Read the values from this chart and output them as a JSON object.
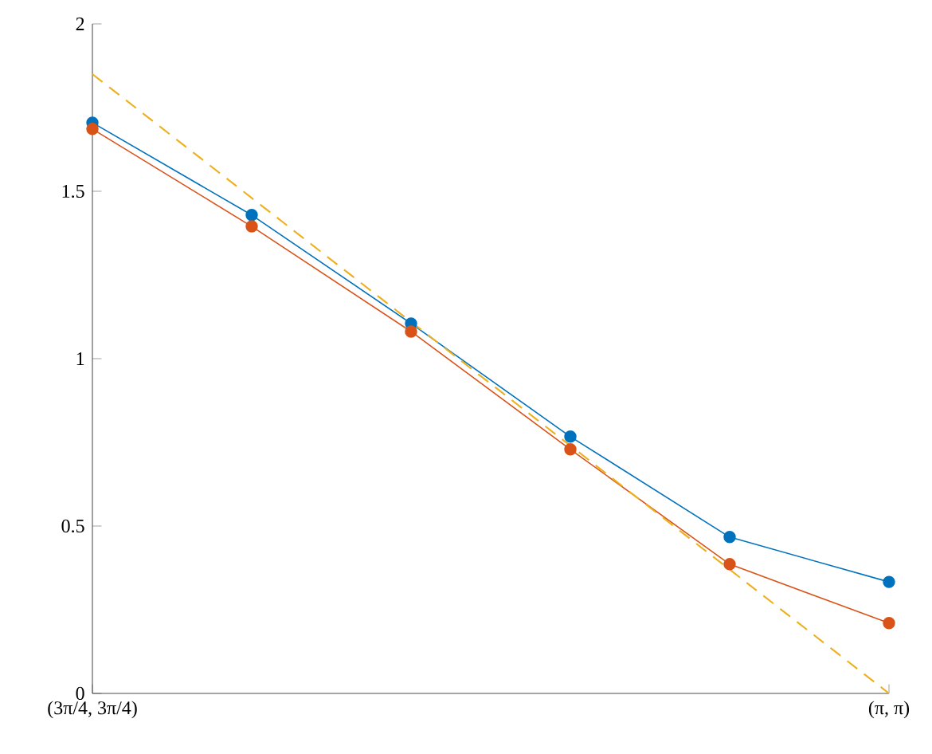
{
  "chart_data": {
    "type": "line",
    "categories": [
      "(3π/4, 3π/4)",
      null,
      null,
      null,
      null,
      "(π, π)"
    ],
    "ylim": [
      0,
      2
    ],
    "yticks": [
      0,
      0.5,
      1,
      1.5,
      2
    ],
    "series": [
      {
        "color": "#0072bd",
        "marker": "circle",
        "line_style": "solid",
        "values": [
          1.705,
          1.429,
          1.105,
          0.767,
          0.467,
          0.333
        ]
      },
      {
        "color": "#d95319",
        "marker": "circle",
        "line_style": "solid",
        "values": [
          1.686,
          1.395,
          1.081,
          0.729,
          0.386,
          0.21
        ]
      },
      {
        "color": "#edb120",
        "marker": "none",
        "line_style": "dashed",
        "values": [
          1.85,
          1.48,
          1.11,
          0.74,
          0.37,
          0
        ]
      }
    ]
  }
}
